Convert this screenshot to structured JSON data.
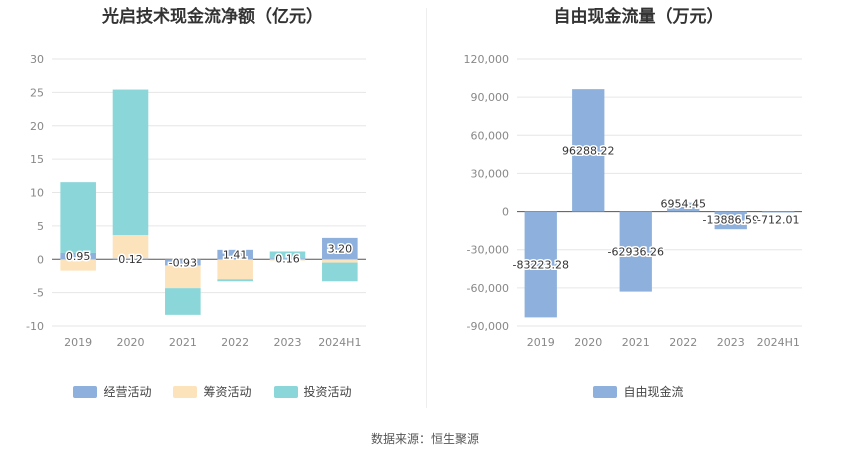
{
  "chart_data": [
    {
      "type": "bar",
      "stacked": true,
      "title": "光启技术现金流净额（亿元）",
      "categories": [
        "2019",
        "2020",
        "2021",
        "2022",
        "2023",
        "2024H1"
      ],
      "yticks": [
        "30",
        "25",
        "20",
        "15",
        "10",
        "5",
        "0",
        "-5",
        "-10"
      ],
      "ylim": [
        -10,
        30
      ],
      "grid": true,
      "legend_position": "bottom",
      "series": [
        {
          "name": "经营活动",
          "color": "#8eb0dc",
          "values": [
            0.95,
            0.12,
            -0.93,
            1.41,
            0.16,
            3.2
          ],
          "labels": [
            "0.95",
            "0.12",
            "-0.93",
            "1.41",
            "0.16",
            "3.20"
          ]
        },
        {
          "name": "筹资活动",
          "color": "#fde3bb",
          "values": [
            -1.7,
            3.5,
            -3.4,
            -3.0,
            -0.2,
            -0.5
          ]
        },
        {
          "name": "投资活动",
          "color": "#8ad6d8",
          "values": [
            10.6,
            21.8,
            -4.0,
            -0.3,
            1.0,
            -2.8
          ]
        }
      ]
    },
    {
      "type": "bar",
      "title": "自由现金流量（万元）",
      "categories": [
        "2019",
        "2020",
        "2021",
        "2022",
        "2023",
        "2024H1"
      ],
      "yticks": [
        "120,000",
        "90,000",
        "60,000",
        "30,000",
        "0",
        "-30,000",
        "-60,000",
        "-90,000"
      ],
      "ylim": [
        -90000,
        120000
      ],
      "grid": true,
      "legend_position": "bottom",
      "series": [
        {
          "name": "自由现金流",
          "color": "#8eb0dc",
          "values": [
            -83223.28,
            96288.22,
            -62936.26,
            6954.45,
            -13886.59,
            -712.01
          ],
          "labels": [
            "-83223.28",
            "96288.22",
            "-62936.26",
            "6954.45",
            "-13886.59",
            "-712.01"
          ]
        }
      ]
    }
  ],
  "footer": {
    "source": "数据来源：恒生聚源"
  }
}
